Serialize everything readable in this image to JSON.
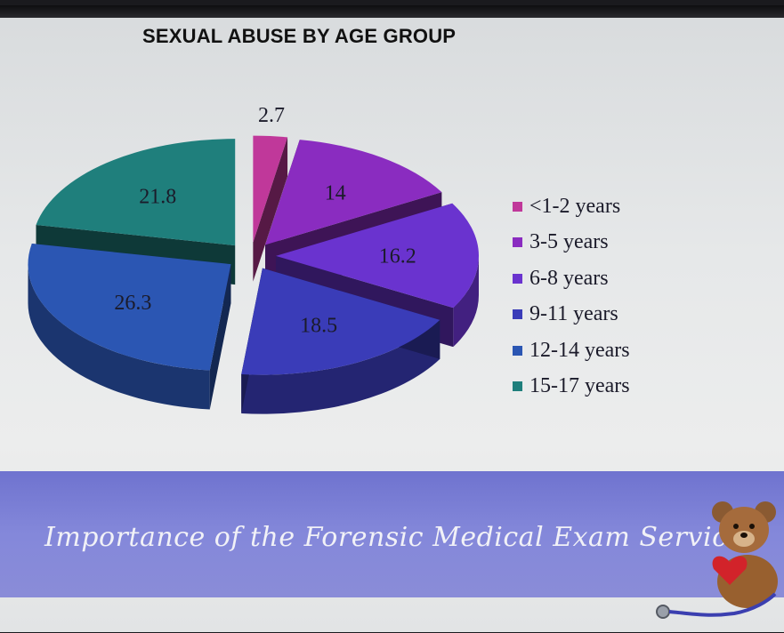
{
  "chart_data": {
    "type": "pie",
    "title": "SEXUAL ABUSE BY AGE GROUP",
    "categories": [
      "<1-2 years",
      "3-5 years",
      "6-8 years",
      "9-11 years",
      "12-14 years",
      "15-17 years"
    ],
    "values": [
      2.7,
      14,
      16.2,
      18.5,
      26.3,
      21.8
    ],
    "colors": [
      "#c0389a",
      "#8a2cc0",
      "#6a33cf",
      "#3a3cb8",
      "#2b56b3",
      "#1f7f7c"
    ],
    "legend_position": "right",
    "style": "3d-exploded"
  },
  "banner": {
    "text": "Importance of the Forensic Medical Exam Service"
  },
  "icons": [
    "teddy-bear-icon",
    "heart-icon",
    "stethoscope-icon"
  ]
}
